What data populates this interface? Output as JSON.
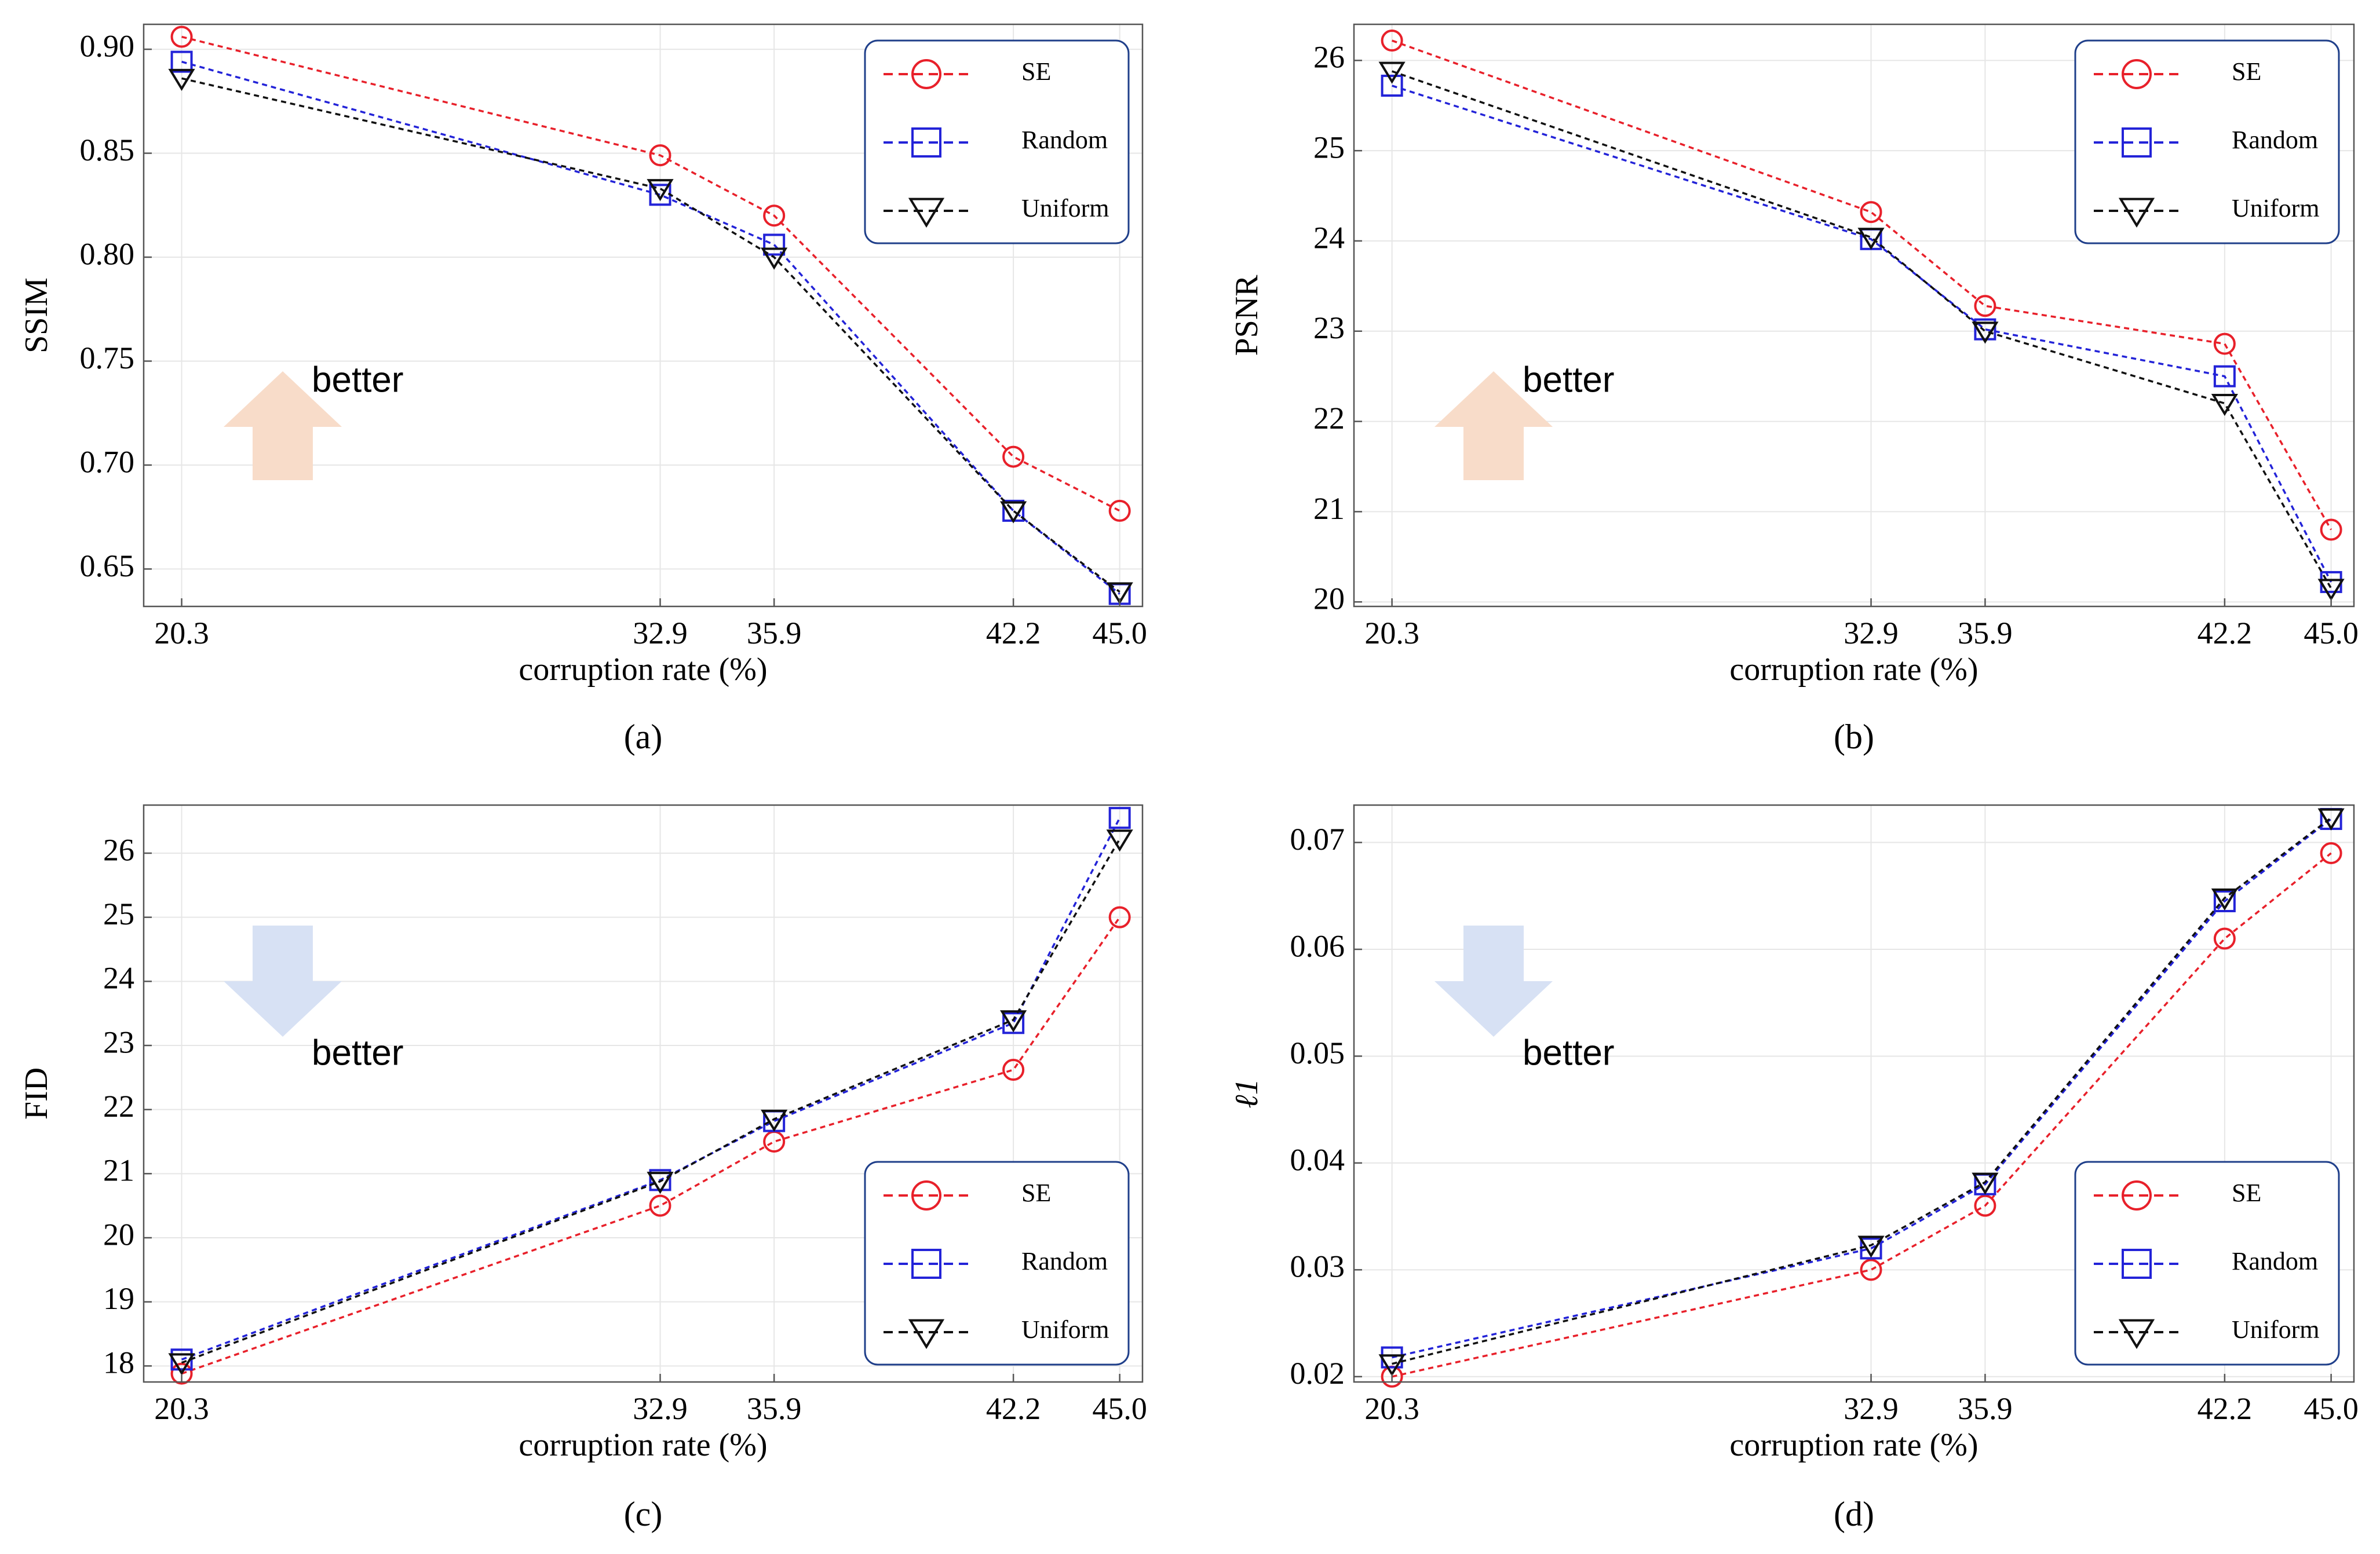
{
  "chart_data": [
    {
      "panel": "(a)",
      "type": "line",
      "title": "",
      "xlabel": "corruption rate (%)",
      "ylabel": "SSIM",
      "x": [
        20.3,
        32.9,
        35.9,
        42.2,
        45.0
      ],
      "xticks": [
        "20.3",
        "32.9",
        "35.9",
        "42.2",
        "45.0"
      ],
      "ylim": [
        0.632,
        0.912
      ],
      "yticks": [
        0.65,
        0.7,
        0.75,
        0.8,
        0.85,
        0.9
      ],
      "ytick_labels": [
        "0.65",
        "0.70",
        "0.75",
        "0.80",
        "0.85",
        "0.90"
      ],
      "series": [
        {
          "name": "SE",
          "marker": "circle",
          "color": "#e8202a",
          "values": [
            0.906,
            0.849,
            0.82,
            0.704,
            0.678
          ]
        },
        {
          "name": "Random",
          "marker": "square",
          "color": "#2323d8",
          "values": [
            0.894,
            0.83,
            0.806,
            0.678,
            0.638
          ]
        },
        {
          "name": "Uniform",
          "marker": "triangle",
          "color": "#111111",
          "values": [
            0.886,
            0.833,
            0.8,
            0.678,
            0.639
          ]
        }
      ],
      "legend_position": "top-right",
      "annotation": {
        "text": "better",
        "arrow": "up",
        "color": "#f8dcc9"
      },
      "grid": true
    },
    {
      "panel": "(b)",
      "type": "line",
      "title": "",
      "xlabel": "corruption rate (%)",
      "ylabel": "PSNR",
      "x": [
        20.3,
        32.9,
        35.9,
        42.2,
        45.0
      ],
      "xticks": [
        "20.3",
        "32.9",
        "35.9",
        "42.2",
        "45.0"
      ],
      "ylim": [
        19.95,
        26.4
      ],
      "yticks": [
        20,
        21,
        22,
        23,
        24,
        25,
        26
      ],
      "ytick_labels": [
        "20",
        "21",
        "22",
        "23",
        "24",
        "25",
        "26"
      ],
      "series": [
        {
          "name": "SE",
          "marker": "circle",
          "color": "#e8202a",
          "values": [
            26.22,
            24.32,
            23.28,
            22.86,
            20.8
          ]
        },
        {
          "name": "Random",
          "marker": "square",
          "color": "#2323d8",
          "values": [
            25.72,
            24.02,
            23.02,
            22.5,
            20.22
          ]
        },
        {
          "name": "Uniform",
          "marker": "triangle",
          "color": "#111111",
          "values": [
            25.88,
            24.04,
            23.0,
            22.2,
            20.15
          ]
        }
      ],
      "legend_position": "top-right",
      "annotation": {
        "text": "better",
        "arrow": "up",
        "color": "#f8dcc9"
      },
      "grid": true
    },
    {
      "panel": "(c)",
      "type": "line",
      "title": "",
      "xlabel": "corruption rate (%)",
      "ylabel": "FID",
      "x": [
        20.3,
        32.9,
        35.9,
        42.2,
        45.0
      ],
      "xticks": [
        "20.3",
        "32.9",
        "35.9",
        "42.2",
        "45.0"
      ],
      "ylim": [
        17.75,
        26.75
      ],
      "yticks": [
        18,
        19,
        20,
        21,
        22,
        23,
        24,
        25,
        26
      ],
      "ytick_labels": [
        "18",
        "19",
        "20",
        "21",
        "22",
        "23",
        "24",
        "25",
        "26"
      ],
      "series": [
        {
          "name": "SE",
          "marker": "circle",
          "color": "#e8202a",
          "values": [
            17.88,
            20.5,
            21.5,
            22.62,
            25.0
          ]
        },
        {
          "name": "Random",
          "marker": "square",
          "color": "#2323d8",
          "values": [
            18.1,
            20.9,
            21.82,
            23.35,
            26.55
          ]
        },
        {
          "name": "Uniform",
          "marker": "triangle",
          "color": "#111111",
          "values": [
            18.05,
            20.88,
            21.85,
            23.4,
            26.22
          ]
        }
      ],
      "legend_position": "bottom-right",
      "annotation": {
        "text": "better",
        "arrow": "down",
        "color": "#d7e1f4"
      },
      "grid": true
    },
    {
      "panel": "(d)",
      "type": "line",
      "title": "",
      "xlabel": "corruption rate (%)",
      "ylabel": "ℓ1",
      "x": [
        20.3,
        32.9,
        35.9,
        42.2,
        45.0
      ],
      "xticks": [
        "20.3",
        "32.9",
        "35.9",
        "42.2",
        "45.0"
      ],
      "ylim": [
        0.0195,
        0.0735
      ],
      "yticks": [
        0.02,
        0.03,
        0.04,
        0.05,
        0.06,
        0.07
      ],
      "ytick_labels": [
        "0.02",
        "0.03",
        "0.04",
        "0.05",
        "0.06",
        "0.07"
      ],
      "series": [
        {
          "name": "SE",
          "marker": "circle",
          "color": "#e8202a",
          "values": [
            0.02,
            0.03,
            0.036,
            0.061,
            0.069
          ]
        },
        {
          "name": "Random",
          "marker": "square",
          "color": "#2323d8",
          "values": [
            0.0218,
            0.032,
            0.038,
            0.0645,
            0.0722
          ]
        },
        {
          "name": "Uniform",
          "marker": "triangle",
          "color": "#111111",
          "values": [
            0.0212,
            0.0323,
            0.0382,
            0.0648,
            0.0723
          ]
        }
      ],
      "legend_position": "bottom-right",
      "annotation": {
        "text": "better",
        "arrow": "down",
        "color": "#d7e1f4"
      },
      "grid": true
    }
  ]
}
